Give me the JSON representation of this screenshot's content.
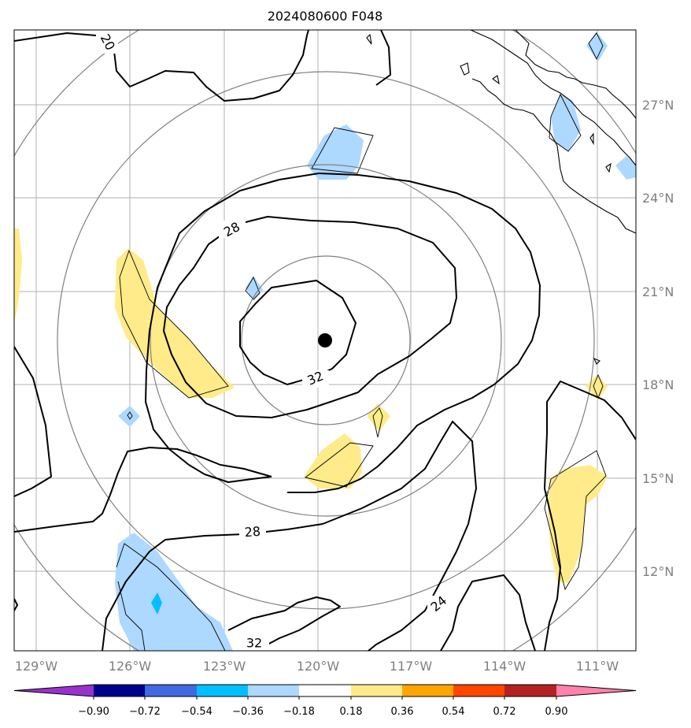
{
  "title": "2024080600 F048",
  "lon_labels": [
    "129°W",
    "126°W",
    "123°W",
    "120°W",
    "117°W",
    "114°W",
    "111°W"
  ],
  "lat_labels": [
    "27°N",
    "24°N",
    "21°N",
    "18°N",
    "15°N",
    "12°N"
  ],
  "contour_labels": [
    "20",
    "28",
    "32",
    "28",
    "32",
    "24"
  ],
  "colorbar": {
    "tick_labels": [
      "−0.90",
      "−0.72",
      "−0.54",
      "−0.36",
      "−0.18",
      "0.18",
      "0.36",
      "0.54",
      "0.72",
      "0.90"
    ],
    "colors": [
      "#9932cc",
      "#00008b",
      "#4169e1",
      "#00bfff",
      "#add8ff",
      "#ffffff",
      "#ffeb8a",
      "#ffa500",
      "#ff4500",
      "#b22222",
      "#ff82ab"
    ]
  },
  "colors": {
    "grid": "#b0b0b0",
    "range_ring": "#808080",
    "neg_fill": "#add8ff",
    "neg_fill_dark": "#00bfff",
    "pos_fill": "#ffeb8a",
    "contour": "#000000",
    "coastline": "#000000"
  },
  "storm_center_icon": "storm-center-dot"
}
